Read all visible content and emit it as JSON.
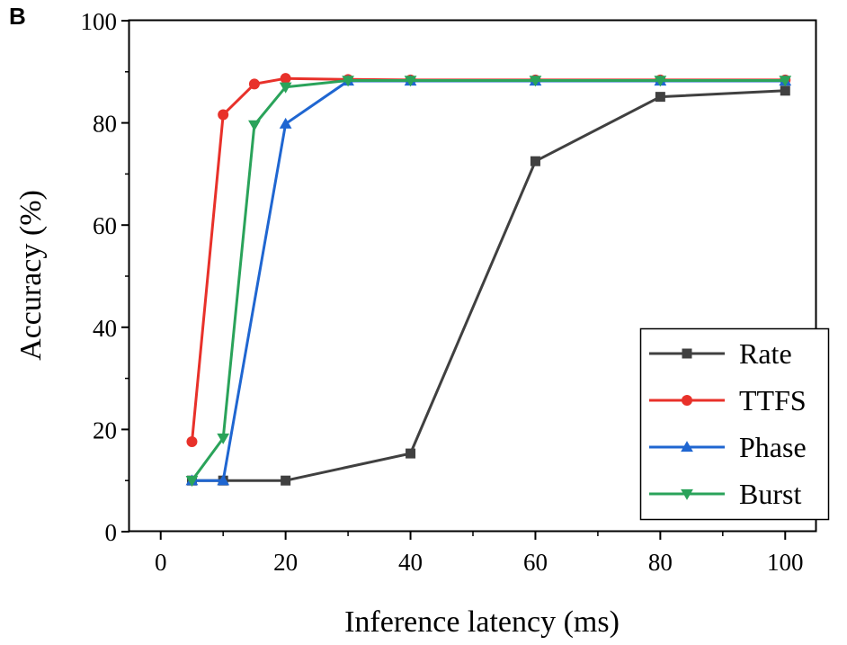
{
  "panel_label": "B",
  "chart_data": {
    "type": "line",
    "title": "",
    "xlabel": "Inference latency (ms)",
    "ylabel": "Accuracy (%)",
    "xlim": [
      -5,
      105
    ],
    "ylim": [
      0,
      100
    ],
    "xticks": [
      0,
      20,
      40,
      60,
      80,
      100
    ],
    "yticks": [
      0,
      20,
      40,
      60,
      80,
      100
    ],
    "grid": false,
    "legend_position": "bottom-right",
    "series": [
      {
        "name": "Rate",
        "color": "#404040",
        "marker": "square",
        "x": [
          5,
          10,
          20,
          40,
          60,
          80,
          100
        ],
        "y": [
          10,
          10,
          10,
          15.3,
          72.5,
          85.1,
          86.3
        ]
      },
      {
        "name": "TTFS",
        "color": "#e8312a",
        "marker": "circle",
        "x": [
          5,
          10,
          15,
          20,
          30,
          40,
          60,
          80,
          100
        ],
        "y": [
          17.6,
          81.6,
          87.6,
          88.7,
          88.5,
          88.4,
          88.4,
          88.4,
          88.4
        ]
      },
      {
        "name": "Phase",
        "color": "#1f66d1",
        "marker": "triangle-up",
        "x": [
          5,
          10,
          20,
          30,
          40,
          60,
          80,
          100
        ],
        "y": [
          10,
          10,
          79.8,
          88.2,
          88.2,
          88.2,
          88.2,
          88.2
        ]
      },
      {
        "name": "Burst",
        "color": "#2aa35a",
        "marker": "triangle-down",
        "x": [
          5,
          10,
          15,
          20,
          30,
          40,
          60,
          80,
          100
        ],
        "y": [
          10,
          18.3,
          79.6,
          87.0,
          88.3,
          88.3,
          88.3,
          88.3,
          88.3
        ]
      }
    ]
  }
}
